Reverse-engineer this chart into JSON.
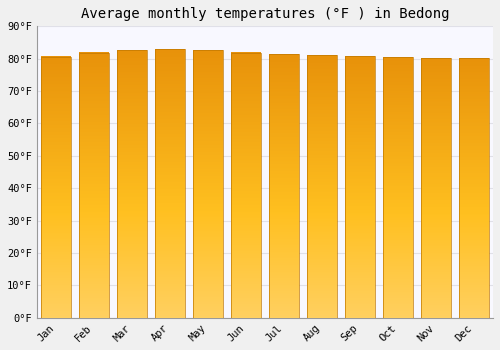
{
  "title": "Average monthly temperatures (°F ) in Bedong",
  "months": [
    "Jan",
    "Feb",
    "Mar",
    "Apr",
    "May",
    "Jun",
    "Jul",
    "Aug",
    "Sep",
    "Oct",
    "Nov",
    "Dec"
  ],
  "values": [
    80.6,
    81.9,
    82.6,
    82.9,
    82.6,
    81.9,
    81.3,
    81.1,
    80.8,
    80.4,
    80.2,
    80.1
  ],
  "ylim": [
    0,
    90
  ],
  "yticks": [
    0,
    10,
    20,
    30,
    40,
    50,
    60,
    70,
    80,
    90
  ],
  "bar_color_top": "#E8920A",
  "bar_color_mid": "#FFC020",
  "bar_color_bottom": "#FFD060",
  "bar_edge_color": "#C07800",
  "background_color": "#F0F0F0",
  "plot_bg_color": "#F8F8FF",
  "grid_color": "#E0E0E8",
  "title_fontsize": 10,
  "tick_fontsize": 7.5,
  "bar_width": 0.78
}
